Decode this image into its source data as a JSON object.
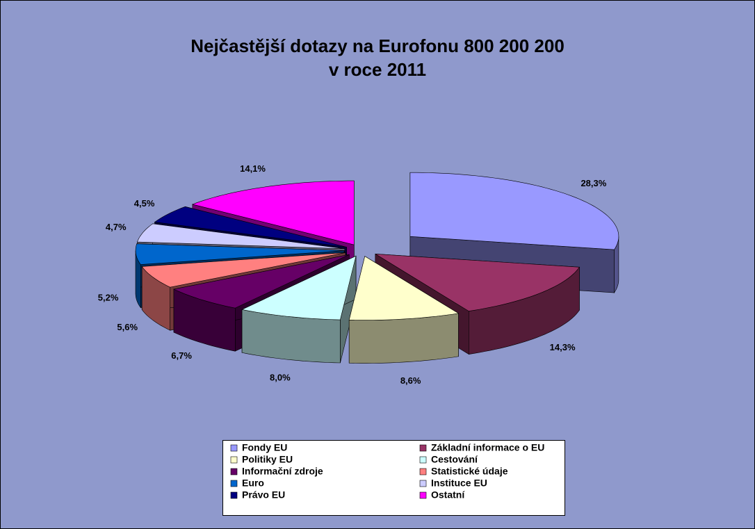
{
  "chart_data": {
    "type": "pie3d",
    "title": [
      "Nejčastější dotazy na Eurofonu 800 200 200",
      "v roce 2011"
    ],
    "categories": [
      "Fondy EU",
      "Základní informace o EU",
      "Politiky EU",
      "Cestování",
      "Informační zdroje",
      "Statistické údaje",
      "Euro",
      "Instituce EU",
      "Právo EU",
      "Ostatní"
    ],
    "values": [
      28.3,
      14.3,
      8.6,
      8.0,
      6.7,
      5.6,
      5.2,
      4.7,
      4.5,
      14.1
    ],
    "value_labels": [
      "28,3%",
      "14,3%",
      "8,6%",
      "8,0%",
      "6,7%",
      "5,6%",
      "5,2%",
      "4,7%",
      "4,5%",
      "14,1%"
    ],
    "colors": [
      "#9999ff",
      "#993366",
      "#ffffcc",
      "#ccffff",
      "#660066",
      "#ff8080",
      "#0066cc",
      "#ccccff",
      "#000080",
      "#ff00ff"
    ],
    "legend": "bottom"
  }
}
